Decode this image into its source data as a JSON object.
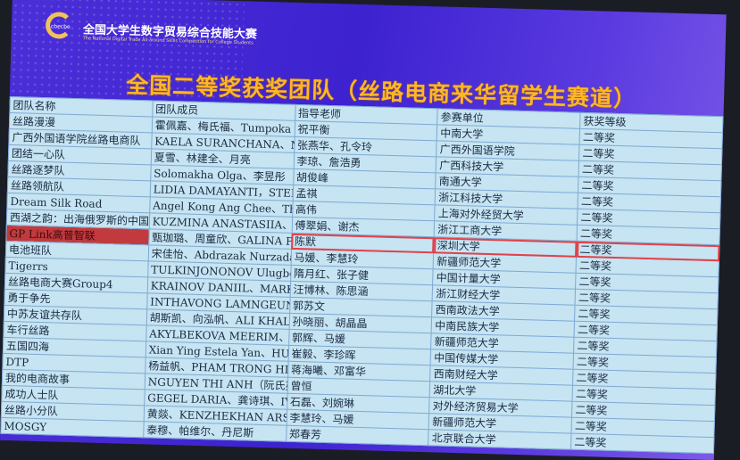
{
  "header": {
    "logo_text": "cbecbe",
    "brand_cn": "全国大学生数字贸易综合技能大赛",
    "brand_en": "The National Digital Trade All-around Skills Competition for College Students",
    "title": "全国二等奖获奖团队（丝路电商来华留学生赛道）"
  },
  "colors": {
    "screen": "#4a2fd8",
    "title": "#ffb627",
    "table_bg": "#c6e4f1",
    "highlight": "#e0424a"
  },
  "table": {
    "columns": [
      "团队名称",
      "团队成员",
      "指导老师",
      "参赛单位",
      "获奖等级"
    ],
    "rows": [
      [
        "丝路漫漫",
        "霍佩嘉、梅氏福、Tumpoka Kabinga卡宾、何莹莹",
        "祝平衡",
        "中南大学",
        "二等奖"
      ],
      [
        "广西外国语学院丝路电商队",
        "KAELA SURANCHANA、MOONSOMBUT KANOKPICH、陈樱、何东",
        "张燕华、孔令玲",
        "广西外国语学院",
        "二等奖"
      ],
      [
        "团结一心队",
        "夏雪、林建全、月亮",
        "李琼、詹浩勇",
        "广西科技大学",
        "二等奖"
      ],
      [
        "丝路逐梦队",
        "Solomakha Olga、李昱彤",
        "胡俊峰",
        "南通大学",
        "二等奖"
      ],
      [
        "丝路领航队",
        "LIDIA DAMAYANTI，STEPHEN，JESSE FELICIA SENTOSA",
        "孟祺",
        "浙江科技大学",
        "二等奖"
      ],
      [
        "Dream Silk Road",
        "Angel Kong Ang Chee、Thepphavong Southsada、Annaye",
        "高伟",
        "上海对外经贸大学",
        "二等奖"
      ],
      [
        "西湖之韵：出海俄罗斯的中国风耳饰",
        "KUZMINA ANASTASIIA、NG KANG EN、LIFANOVA DARIA、MI",
        "傅翠娟、谢杰",
        "浙江工商大学",
        "二等奖"
      ],
      [
        "GP Link高普智联",
        "甄珈璐、周童欣、GALINA PALEI、ARKADII ROSTKOVSKII",
        "陈默",
        "深圳大学",
        "二等奖"
      ],
      [
        "电池班队",
        "宋佳怡、Abdrazak Nurzada Kanatovna",
        "马媛、李慧玲",
        "新疆师范大学",
        "二等奖"
      ],
      [
        "Tigerrs",
        "TULKINJONONOV Ulugbek、牟浩楠、章镭尹、董建铭、汪芷",
        "隋月红、张子健",
        "中国计量大学",
        "二等奖"
      ],
      [
        "丝路电商大赛Group4",
        "KRAINOV DANIIL、MARKELOVA IRINA、SINITSYNA ANNA",
        "汪博林、陈思涵",
        "浙江财经大学",
        "二等奖"
      ],
      [
        "勇于争先",
        "INTHAVONG LAMNGEUNE、PRAKAIVICHIEN NATTAPHUM、NOUB",
        "郭苏文",
        "西南政法大学",
        "二等奖"
      ],
      [
        "中苏友谊共存队",
        "胡斯凯、向泓帆、ALI KHALID MOHYELDEEN MOHAMED、OMEI",
        "孙晓丽、胡晶晶",
        "中南民族大学",
        "二等奖"
      ],
      [
        "车行丝路",
        "AKYLBEKOVA MEERIM、刘洲航",
        "郭辉、马媛",
        "新疆师范大学",
        "二等奖"
      ],
      [
        "五国四海",
        "Xian Ying Estela Yan、HU Sheila、YIN LAI LAI SAN、",
        "崔毅、李珍晖",
        "中国传媒大学",
        "二等奖"
      ],
      [
        "DTP",
        "杨益帆、PHAM TRONG HIEU、王志宇、TRAN THI NGOC ANH",
        "蒋海曦、邓富华",
        "西南财经大学",
        "二等奖"
      ],
      [
        "我的电商故事",
        "NGUYEN THI ANH（阮氏英）、欧阳旭鹏",
        "曾恒",
        "湖北大学",
        "二等奖"
      ],
      [
        "成功人士队",
        "GEGEL DARIA、龚诗琪、IVANOVA ANASTASIIA、VOLODKINA",
        "石磊、刘婉琳",
        "对外经济贸易大学",
        "二等奖"
      ],
      [
        "丝路小分队",
        "黄燚、KENZHEKHAN ARSHYN、HALTOVA MAFTUNA",
        "李慧玲、马媛",
        "新疆师范大学",
        "二等奖"
      ],
      [
        "MOSGY",
        "泰穆、帕维尔、丹尼斯",
        "郑春芳",
        "北京联合大学",
        "二等奖"
      ]
    ],
    "highlighted_row": 7
  }
}
